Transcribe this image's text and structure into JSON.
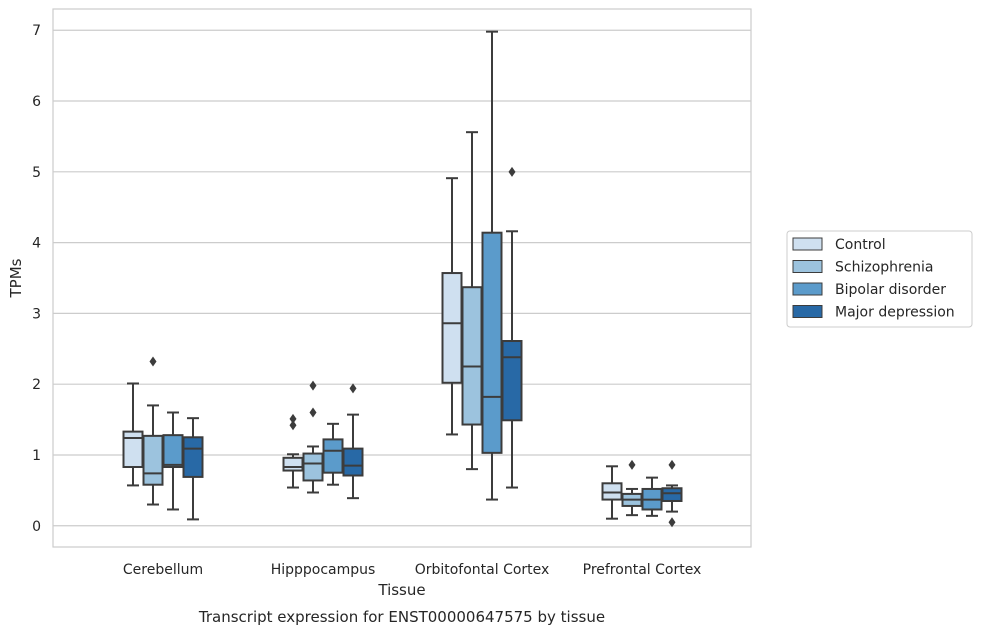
{
  "chart_data": {
    "type": "box",
    "caption": "Transcript expression for ENST00000647575 by tissue",
    "xlabel": "Tissue",
    "ylabel": "TPMs",
    "ylim": [
      -0.3,
      7.3
    ],
    "yticks": [
      0,
      1,
      2,
      3,
      4,
      5,
      6,
      7
    ],
    "grid": true,
    "legend_position": "right",
    "categories": [
      "Cerebellum",
      "Hipppocampus",
      "Orbitofontal Cortex",
      "Prefrontal Cortex"
    ],
    "series": [
      {
        "name": "Control",
        "color": "#cfe0f0",
        "boxes": [
          {
            "whisker_low": 0.57,
            "q1": 0.83,
            "median": 1.24,
            "q3": 1.33,
            "whisker_high": 2.01,
            "outliers": []
          },
          {
            "whisker_low": 0.54,
            "q1": 0.78,
            "median": 0.83,
            "q3": 0.96,
            "whisker_high": 1.01,
            "outliers": [
              1.42,
              1.51
            ]
          },
          {
            "whisker_low": 1.29,
            "q1": 2.02,
            "median": 2.86,
            "q3": 3.57,
            "whisker_high": 4.91,
            "outliers": []
          },
          {
            "whisker_low": 0.1,
            "q1": 0.37,
            "median": 0.47,
            "q3": 0.6,
            "whisker_high": 0.84,
            "outliers": []
          }
        ]
      },
      {
        "name": "Schizophrenia",
        "color": "#9cc3de",
        "boxes": [
          {
            "whisker_low": 0.3,
            "q1": 0.58,
            "median": 0.74,
            "q3": 1.27,
            "whisker_high": 1.7,
            "outliers": [
              2.32
            ]
          },
          {
            "whisker_low": 0.47,
            "q1": 0.64,
            "median": 0.88,
            "q3": 1.02,
            "whisker_high": 1.12,
            "outliers": [
              1.6,
              1.98
            ]
          },
          {
            "whisker_low": 0.8,
            "q1": 1.43,
            "median": 2.25,
            "q3": 3.37,
            "whisker_high": 5.56,
            "outliers": []
          },
          {
            "whisker_low": 0.15,
            "q1": 0.28,
            "median": 0.37,
            "q3": 0.45,
            "whisker_high": 0.52,
            "outliers": [
              0.86
            ]
          }
        ]
      },
      {
        "name": "Bipolar disorder",
        "color": "#5b9bcb",
        "boxes": [
          {
            "whisker_low": 0.23,
            "q1": 0.83,
            "median": 0.86,
            "q3": 1.28,
            "whisker_high": 1.6,
            "outliers": []
          },
          {
            "whisker_low": 0.58,
            "q1": 0.75,
            "median": 1.06,
            "q3": 1.22,
            "whisker_high": 1.44,
            "outliers": []
          },
          {
            "whisker_low": 0.37,
            "q1": 1.03,
            "median": 1.82,
            "q3": 4.14,
            "whisker_high": 6.98,
            "outliers": []
          },
          {
            "whisker_low": 0.14,
            "q1": 0.23,
            "median": 0.37,
            "q3": 0.52,
            "whisker_high": 0.68,
            "outliers": []
          }
        ]
      },
      {
        "name": "Major depression",
        "color": "#2869a6",
        "boxes": [
          {
            "whisker_low": 0.09,
            "q1": 0.69,
            "median": 1.09,
            "q3": 1.25,
            "whisker_high": 1.52,
            "outliers": []
          },
          {
            "whisker_low": 0.39,
            "q1": 0.71,
            "median": 0.85,
            "q3": 1.09,
            "whisker_high": 1.57,
            "outliers": [
              1.94
            ]
          },
          {
            "whisker_low": 0.54,
            "q1": 1.49,
            "median": 2.38,
            "q3": 2.61,
            "whisker_high": 4.16,
            "outliers": [
              5.0
            ]
          },
          {
            "whisker_low": 0.2,
            "q1": 0.35,
            "median": 0.46,
            "q3": 0.53,
            "whisker_high": 0.57,
            "outliers": [
              0.05,
              0.86
            ]
          }
        ]
      }
    ]
  }
}
